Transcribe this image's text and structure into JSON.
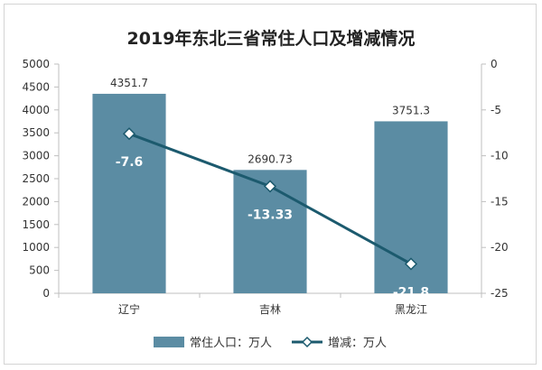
{
  "chart_data": {
    "type": "bar",
    "title": "2019年东北三省常住人口及增减情况",
    "categories": [
      "辽宁",
      "吉林",
      "黑龙江"
    ],
    "series": [
      {
        "name": "常住人口：万人",
        "type": "bar",
        "axis": "left",
        "values": [
          4351.7,
          2690.73,
          3751.3
        ],
        "labels": [
          "4351.7",
          "2690.73",
          "3751.3"
        ],
        "color": "#5b8ca3"
      },
      {
        "name": "增减：万人",
        "type": "line",
        "axis": "right",
        "values": [
          -7.6,
          -13.33,
          -21.8
        ],
        "labels": [
          "-7.6",
          "-13.33",
          "-21.8"
        ],
        "color": "#1c5a6e"
      }
    ],
    "y_left": {
      "min": 0,
      "max": 5000,
      "step": 500,
      "ticks": [
        "0",
        "500",
        "1000",
        "1500",
        "2000",
        "2500",
        "3000",
        "3500",
        "4000",
        "4500",
        "5000"
      ]
    },
    "y_right": {
      "min": -25,
      "max": 0,
      "step": 5,
      "ticks": [
        "0",
        "-5",
        "-10",
        "-15",
        "-20",
        "-25"
      ]
    },
    "grid": false,
    "legend": "bottom"
  }
}
